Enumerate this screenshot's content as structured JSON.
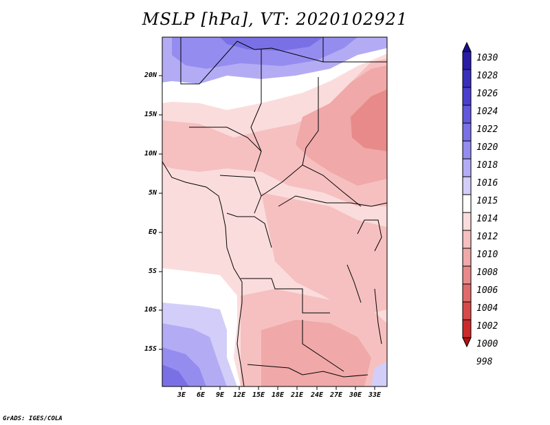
{
  "title": "MSLP [hPa], VT: 2020102921",
  "credit": "GrADS: IGES/COLA",
  "latitude_labels": [
    "20N",
    "15N",
    "10N",
    "5N",
    "EQ",
    "5S",
    "10S",
    "15S"
  ],
  "longitude_labels": [
    "3E",
    "6E",
    "9E",
    "12E",
    "15E",
    "18E",
    "21E",
    "24E",
    "27E",
    "30E",
    "33E"
  ],
  "colorbar": {
    "levels": [
      "1030",
      "1028",
      "1026",
      "1024",
      "1022",
      "1020",
      "1018",
      "1016",
      "1015",
      "1014",
      "1012",
      "1010",
      "1008",
      "1006",
      "1004",
      "1002",
      "1000",
      "998"
    ],
    "colors": [
      "#1a0f8c",
      "#2a1ca6",
      "#3a2ebd",
      "#4b3fcf",
      "#6258dc",
      "#7a70e6",
      "#958cef",
      "#b3acf4",
      "#d2cef9",
      "#ffffff",
      "#fbdcdc",
      "#f6c0c0",
      "#f0a8a8",
      "#e88a8a",
      "#e06a6a",
      "#d84a4a",
      "#cc2a2a",
      "#b01212"
    ]
  }
}
